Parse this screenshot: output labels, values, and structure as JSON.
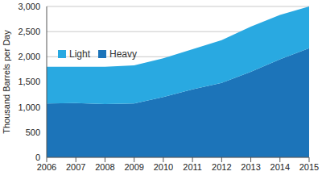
{
  "chart_data": {
    "type": "area",
    "stacked": true,
    "y_label": "Thousand Barrels per Day",
    "x": [
      2006,
      2007,
      2008,
      2009,
      2010,
      2011,
      2012,
      2013,
      2014,
      2015
    ],
    "series": [
      {
        "name": "Light",
        "color": "#29a9e1",
        "values": [
          730,
          720,
          740,
          760,
          770,
          800,
          850,
          900,
          880,
          830
        ]
      },
      {
        "name": "Heavy",
        "color": "#1c74b9",
        "values": [
          1070,
          1080,
          1060,
          1070,
          1200,
          1350,
          1480,
          1700,
          1950,
          2170
        ]
      }
    ],
    "xlim": [
      2006,
      2015
    ],
    "xticks": [
      2006,
      2007,
      2008,
      2009,
      2010,
      2011,
      2012,
      2013,
      2014,
      2015
    ],
    "ylim": [
      0,
      3000
    ],
    "yticks": [
      0,
      500,
      1000,
      1500,
      2000,
      2500,
      3000
    ],
    "grid": true,
    "legend": "upper left"
  }
}
